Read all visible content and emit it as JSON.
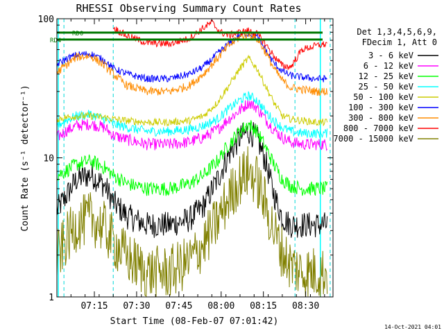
{
  "chart_data": {
    "type": "line",
    "title": "RHESSI Observing Summary Count Rates",
    "xlabel": "Start Time (08-Feb-07 07:01:42)",
    "ylabel": "Count Rate (s⁻¹ detector⁻¹)",
    "yscale": "log",
    "ylim": [
      1,
      100
    ],
    "y_ticks": [
      {
        "value": 1,
        "label": "1"
      },
      {
        "value": 10,
        "label": "10"
      },
      {
        "value": 100,
        "label": "100"
      }
    ],
    "x_range_min": [
      0,
      98
    ],
    "x_ticks": [
      {
        "min": 13.3,
        "label": "07:15"
      },
      {
        "min": 28.3,
        "label": "07:30"
      },
      {
        "min": 43.3,
        "label": "07:45"
      },
      {
        "min": 58.3,
        "label": "08:00"
      },
      {
        "min": 73.3,
        "label": "08:15"
      },
      {
        "min": 88.3,
        "label": "08:30"
      }
    ],
    "legend_placement": "top-right, outside plot",
    "legend_header": [
      "Det 1,3,4,5,6,9,",
      "FDecim 1, Att 0"
    ],
    "decimation_levels": [
      {
        "label": "RD0",
        "level": 0.3
      },
      {
        "label": "RD4",
        "level": 0.55
      }
    ],
    "attenuator_markers_min": [
      2.5,
      20,
      84.5,
      97
    ],
    "night_markers_min": [
      0.5,
      93.5
    ],
    "series": [
      {
        "name": "3 - 6 keV",
        "color": "#000000",
        "points": [
          [
            0,
            4.2
          ],
          [
            3,
            5.2
          ],
          [
            7,
            7
          ],
          [
            12,
            7.6
          ],
          [
            17,
            6.3
          ],
          [
            20,
            4.8
          ],
          [
            25,
            3.8
          ],
          [
            32,
            3.3
          ],
          [
            40,
            3.3
          ],
          [
            47,
            3.6
          ],
          [
            52,
            4.5
          ],
          [
            57,
            7
          ],
          [
            61,
            10.5
          ],
          [
            65,
            14
          ],
          [
            68,
            15.5
          ],
          [
            71,
            14
          ],
          [
            74,
            9.5
          ],
          [
            77,
            5.5
          ],
          [
            80,
            3.7
          ],
          [
            83,
            3.3
          ],
          [
            87,
            3.3
          ],
          [
            92,
            3.3
          ],
          [
            96,
            3.3
          ]
        ]
      },
      {
        "name": "6 - 12 keV",
        "color": "#ff00ff",
        "points": [
          [
            0,
            14
          ],
          [
            3,
            15.5
          ],
          [
            7,
            17
          ],
          [
            12,
            17.5
          ],
          [
            17,
            16.5
          ],
          [
            20,
            14.5
          ],
          [
            25,
            13.5
          ],
          [
            32,
            12.5
          ],
          [
            40,
            12.5
          ],
          [
            47,
            13
          ],
          [
            52,
            14
          ],
          [
            57,
            16
          ],
          [
            61,
            19
          ],
          [
            65,
            22
          ],
          [
            68,
            25
          ],
          [
            71,
            23
          ],
          [
            74,
            19
          ],
          [
            77,
            16
          ],
          [
            80,
            14
          ],
          [
            83,
            13
          ],
          [
            87,
            12.5
          ],
          [
            92,
            12.5
          ],
          [
            96,
            12.5
          ]
        ]
      },
      {
        "name": "12 - 25 keV",
        "color": "#00ff00",
        "points": [
          [
            0,
            7.5
          ],
          [
            3,
            8
          ],
          [
            7,
            9
          ],
          [
            12,
            9.5
          ],
          [
            17,
            8.5
          ],
          [
            20,
            7.5
          ],
          [
            25,
            6.5
          ],
          [
            32,
            6
          ],
          [
            40,
            6
          ],
          [
            47,
            6.5
          ],
          [
            52,
            7.5
          ],
          [
            57,
            9.5
          ],
          [
            61,
            12.5
          ],
          [
            65,
            15.5
          ],
          [
            68,
            17.5
          ],
          [
            71,
            15.5
          ],
          [
            74,
            12
          ],
          [
            77,
            9
          ],
          [
            80,
            7
          ],
          [
            83,
            6.3
          ],
          [
            87,
            6
          ],
          [
            92,
            6
          ],
          [
            96,
            6
          ]
        ]
      },
      {
        "name": "25 - 50 keV",
        "color": "#00ffff",
        "points": [
          [
            0,
            17
          ],
          [
            3,
            18.5
          ],
          [
            7,
            20
          ],
          [
            12,
            20.5
          ],
          [
            17,
            19
          ],
          [
            20,
            17.5
          ],
          [
            25,
            16.5
          ],
          [
            32,
            15.5
          ],
          [
            40,
            15.5
          ],
          [
            47,
            16
          ],
          [
            52,
            17
          ],
          [
            57,
            19
          ],
          [
            61,
            22.5
          ],
          [
            65,
            26
          ],
          [
            68,
            28
          ],
          [
            71,
            26
          ],
          [
            74,
            21.5
          ],
          [
            77,
            18.5
          ],
          [
            80,
            16.5
          ],
          [
            83,
            15.5
          ],
          [
            87,
            15
          ],
          [
            92,
            15
          ],
          [
            96,
            15
          ]
        ]
      },
      {
        "name": "50 - 100 keV",
        "color": "#cccc00",
        "points": [
          [
            0,
            19
          ],
          [
            3,
            19.5
          ],
          [
            7,
            20
          ],
          [
            12,
            20
          ],
          [
            17,
            19.5
          ],
          [
            20,
            19
          ],
          [
            25,
            18.5
          ],
          [
            32,
            18
          ],
          [
            40,
            18
          ],
          [
            47,
            18.5
          ],
          [
            52,
            20
          ],
          [
            57,
            25
          ],
          [
            61,
            33
          ],
          [
            65,
            44
          ],
          [
            68,
            52
          ],
          [
            71,
            44
          ],
          [
            74,
            33
          ],
          [
            77,
            25
          ],
          [
            80,
            20
          ],
          [
            83,
            19
          ],
          [
            87,
            18.5
          ],
          [
            92,
            18
          ],
          [
            96,
            18
          ]
        ]
      },
      {
        "name": "100 - 300 keV",
        "color": "#0000ff",
        "points": [
          [
            0,
            47
          ],
          [
            3,
            51
          ],
          [
            7,
            55
          ],
          [
            12,
            56
          ],
          [
            17,
            50
          ],
          [
            20,
            44
          ],
          [
            25,
            40
          ],
          [
            32,
            37
          ],
          [
            40,
            37
          ],
          [
            47,
            40
          ],
          [
            52,
            45
          ],
          [
            57,
            56
          ],
          [
            61,
            66
          ],
          [
            65,
            76
          ],
          [
            68,
            79
          ],
          [
            71,
            74
          ],
          [
            74,
            60
          ],
          [
            77,
            48
          ],
          [
            80,
            42
          ],
          [
            83,
            39
          ],
          [
            87,
            38
          ],
          [
            92,
            37
          ],
          [
            96,
            37
          ]
        ]
      },
      {
        "name": "300 - 800 keV",
        "color": "#ff8c00",
        "points": [
          [
            0,
            41
          ],
          [
            3,
            46
          ],
          [
            7,
            53
          ],
          [
            12,
            54
          ],
          [
            17,
            46
          ],
          [
            20,
            40
          ],
          [
            25,
            33
          ],
          [
            32,
            30
          ],
          [
            40,
            30
          ],
          [
            47,
            33
          ],
          [
            52,
            40
          ],
          [
            57,
            52
          ],
          [
            61,
            64
          ],
          [
            65,
            74
          ],
          [
            68,
            78
          ],
          [
            71,
            72
          ],
          [
            74,
            58
          ],
          [
            77,
            44
          ],
          [
            80,
            36
          ],
          [
            83,
            32
          ],
          [
            87,
            31
          ],
          [
            92,
            30
          ],
          [
            96,
            30
          ]
        ]
      },
      {
        "name": "800 - 7000 keV",
        "color": "#ff0000",
        "points": [
          [
            20,
            86
          ],
          [
            25,
            75
          ],
          [
            32,
            67
          ],
          [
            40,
            66
          ],
          [
            47,
            72
          ],
          [
            52,
            86
          ],
          [
            55,
            94
          ],
          [
            58,
            80
          ],
          [
            61,
            76
          ],
          [
            65,
            80
          ],
          [
            68,
            82
          ],
          [
            71,
            78
          ],
          [
            74,
            66
          ],
          [
            77,
            54
          ],
          [
            80,
            46
          ],
          [
            83,
            45
          ],
          [
            87,
            60
          ],
          [
            92,
            64
          ],
          [
            96,
            66
          ]
        ]
      },
      {
        "name": "7000 - 15000 keV",
        "color": "#808000",
        "points": [
          [
            0,
            1.9
          ],
          [
            3,
            2.5
          ],
          [
            7,
            3.3
          ],
          [
            12,
            3.7
          ],
          [
            17,
            3.1
          ],
          [
            20,
            2.5
          ],
          [
            25,
            1.9
          ],
          [
            32,
            1.5
          ],
          [
            40,
            1.5
          ],
          [
            47,
            1.8
          ],
          [
            52,
            2.4
          ],
          [
            57,
            3.5
          ],
          [
            61,
            5.2
          ],
          [
            65,
            7
          ],
          [
            68,
            8
          ],
          [
            71,
            6.8
          ],
          [
            74,
            4.6
          ],
          [
            77,
            3
          ],
          [
            80,
            2.1
          ],
          [
            83,
            1.7
          ],
          [
            87,
            1.5
          ],
          [
            92,
            1.5
          ],
          [
            96,
            1.5
          ]
        ]
      }
    ],
    "timestamp": "14-Oct-2021 04:01"
  }
}
